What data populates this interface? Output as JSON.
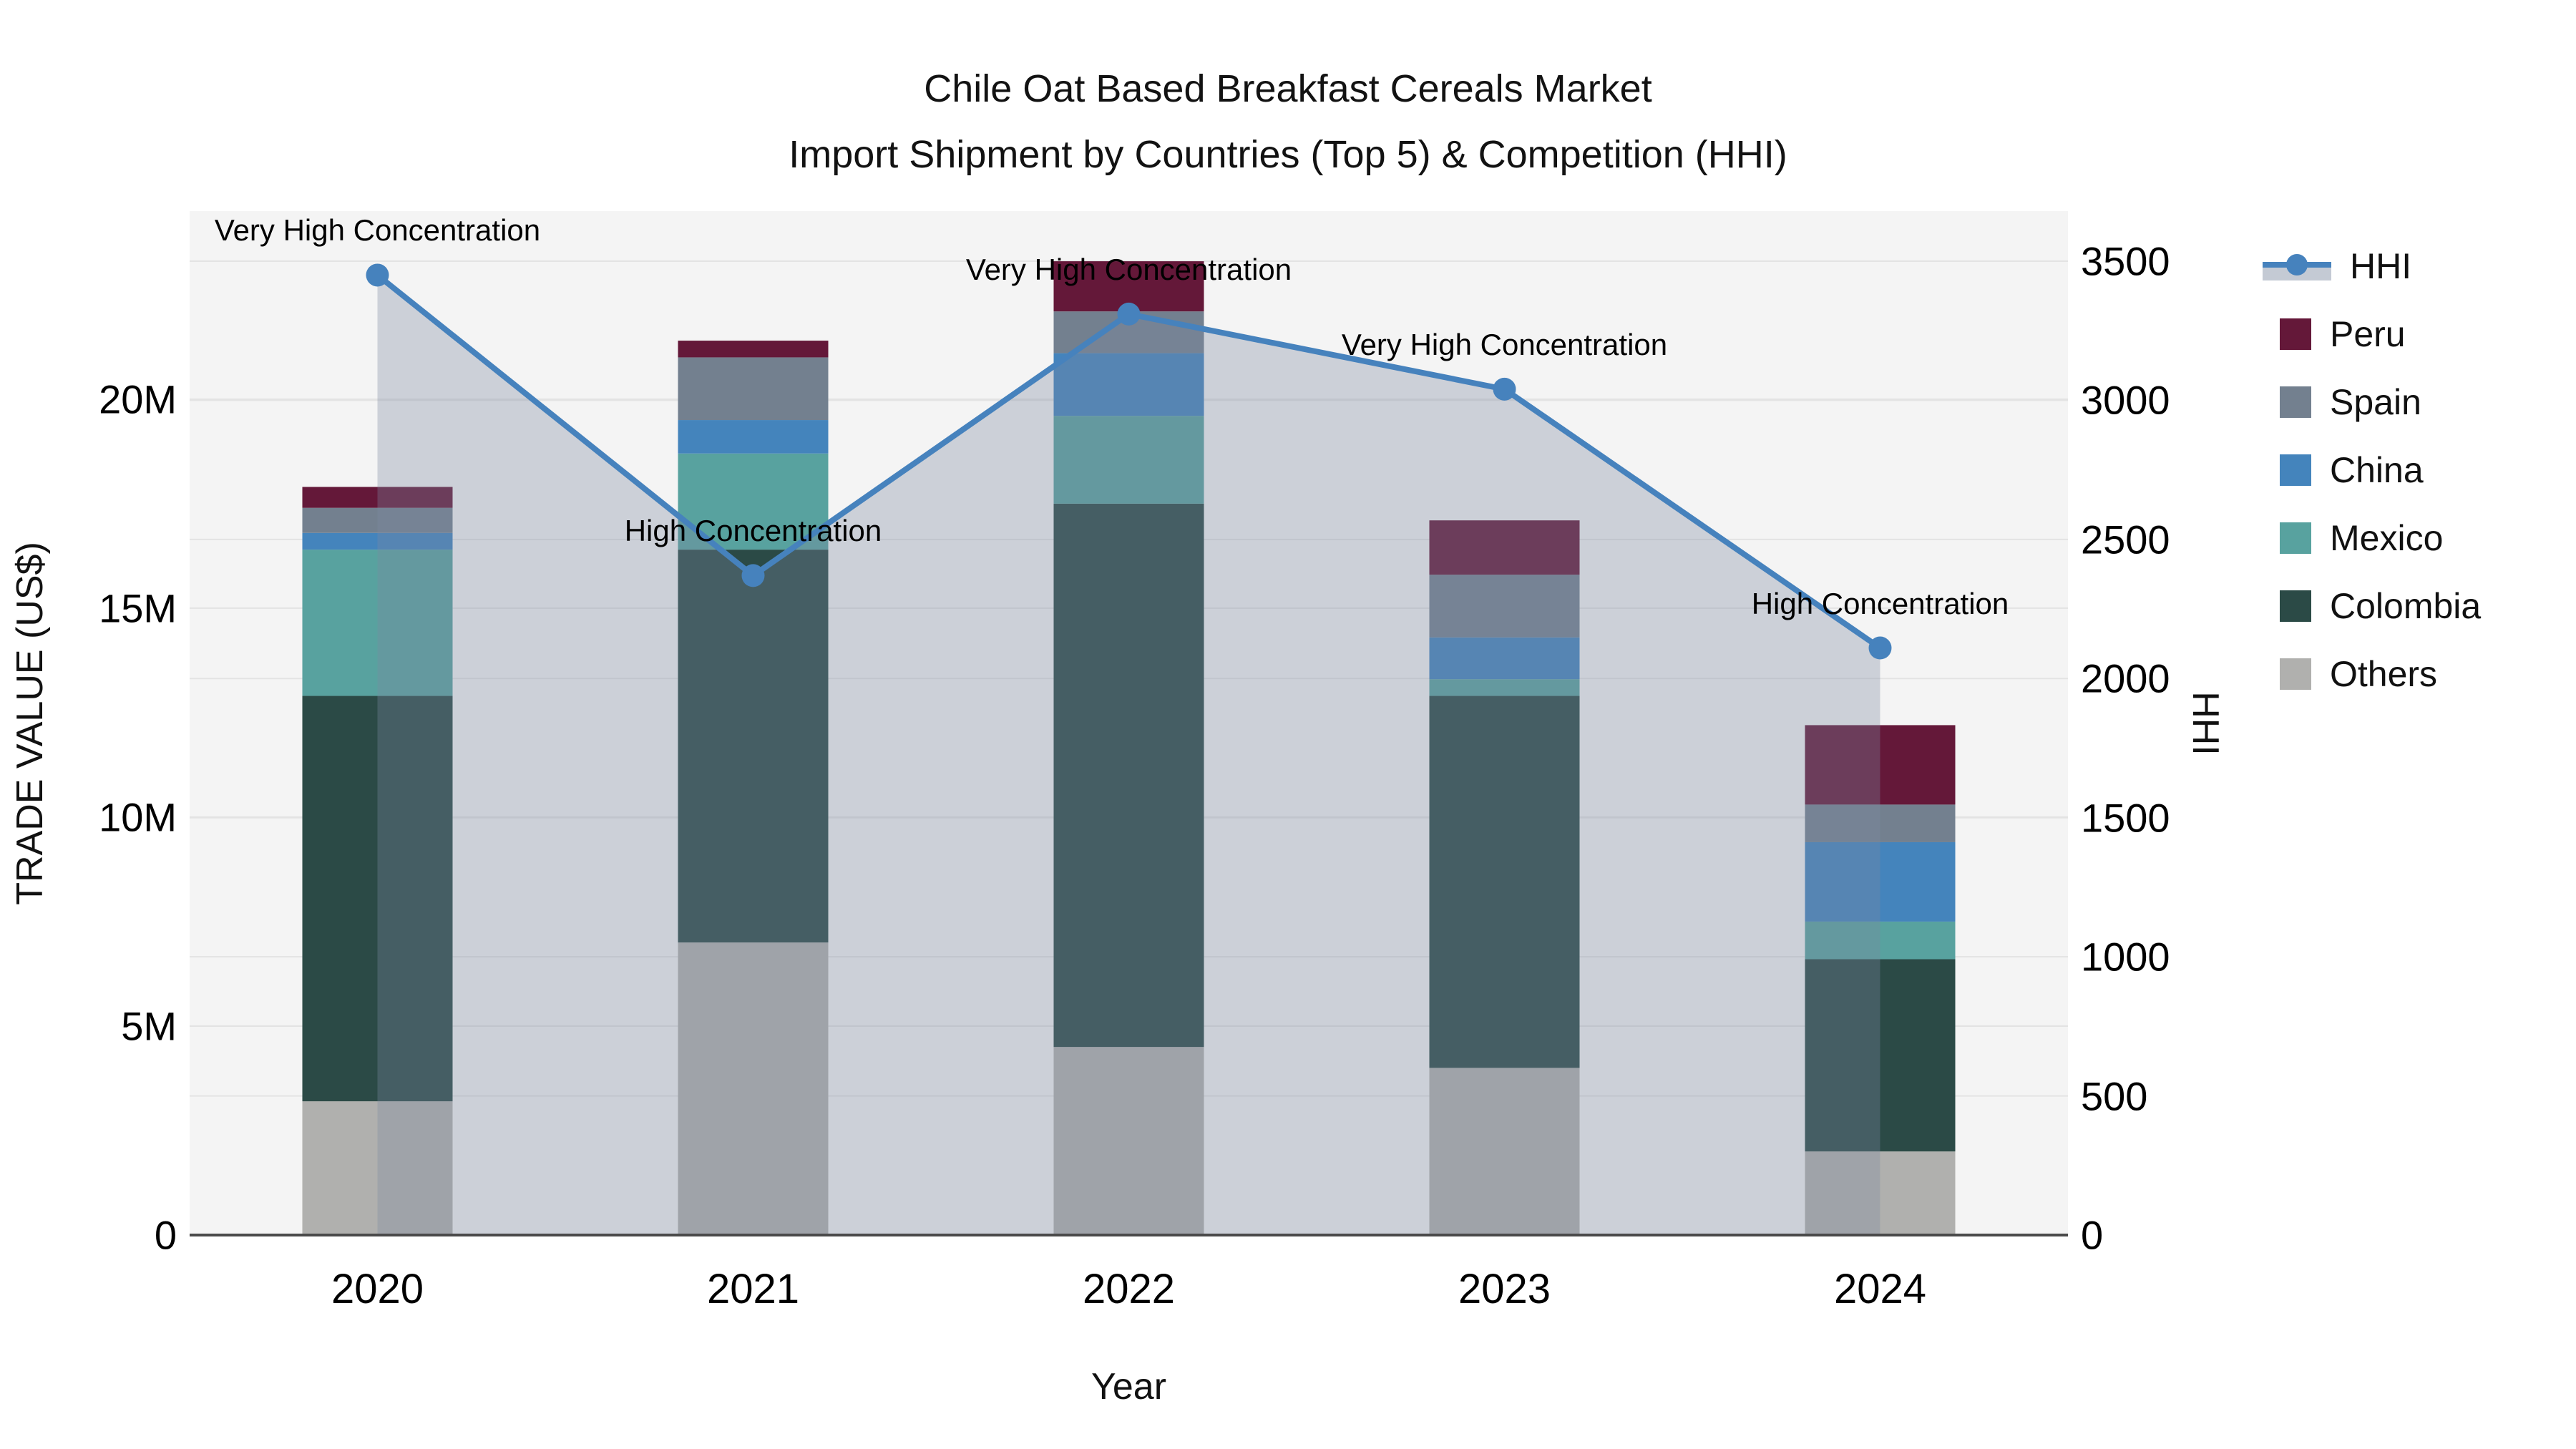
{
  "title": {
    "line1": "Chile Oat Based Breakfast Cereals Market",
    "line2": "Import Shipment by Countries (Top 5) & Competition (HHI)"
  },
  "colors": {
    "plot_background": "#f4f4f4",
    "gridline": "#e3e3e3",
    "axis_line": "#4a4a4a",
    "hhi_line": "#4682bd",
    "hhi_area_fill": "rgba(125,138,160,0.33)",
    "peru": "#641839",
    "spain": "#73808f",
    "china": "#4484bc",
    "mexico": "#58a29f",
    "colombia": "#2b4a46",
    "others": "#b0b0ae"
  },
  "legend": {
    "items": [
      {
        "label": "HHI",
        "type": "line",
        "color": "#4682bd"
      },
      {
        "label": "Peru",
        "type": "box",
        "color": "#641839"
      },
      {
        "label": "Spain",
        "type": "box",
        "color": "#73808f"
      },
      {
        "label": "China",
        "type": "box",
        "color": "#4484bc"
      },
      {
        "label": "Mexico",
        "type": "box",
        "color": "#58a29f"
      },
      {
        "label": "Colombia",
        "type": "box",
        "color": "#2b4a46"
      },
      {
        "label": "Others",
        "type": "box",
        "color": "#b0b0ae"
      }
    ]
  },
  "chart_data": {
    "type": "bar",
    "subtype": "stacked-bars-with-line",
    "categories": [
      "2020",
      "2021",
      "2022",
      "2023",
      "2024"
    ],
    "x_label": "Year",
    "y_left": {
      "label": "TRADE VALUE (US$)",
      "tick_values_musd": [
        0,
        5,
        10,
        15,
        20
      ],
      "tick_labels": [
        "0",
        "5M",
        "10M",
        "15M",
        "20M"
      ],
      "axis_top_musd": 24.5
    },
    "y_right": {
      "label": "HHI",
      "tick_values": [
        0,
        500,
        1000,
        1500,
        2000,
        2500,
        3000,
        3500
      ],
      "tick_labels": [
        "0",
        "500",
        "1000",
        "1500",
        "2000",
        "2500",
        "3000",
        "3500"
      ],
      "axis_top": 3680
    },
    "series": [
      {
        "name": "Others",
        "color": "#b0b0ae",
        "values_musd": [
          3.2,
          7.0,
          4.5,
          4.0,
          2.0
        ]
      },
      {
        "name": "Colombia",
        "color": "#2b4a46",
        "values_musd": [
          9.7,
          9.4,
          13.0,
          8.9,
          4.6
        ]
      },
      {
        "name": "Mexico",
        "color": "#58a29f",
        "values_musd": [
          3.5,
          2.3,
          2.1,
          0.4,
          0.9
        ]
      },
      {
        "name": "China",
        "color": "#4484bc",
        "values_musd": [
          0.4,
          0.8,
          1.5,
          1.0,
          1.9
        ]
      },
      {
        "name": "Spain",
        "color": "#73808f",
        "values_musd": [
          0.6,
          1.5,
          1.0,
          1.5,
          0.9
        ]
      },
      {
        "name": "Peru",
        "color": "#641839",
        "values_musd": [
          0.5,
          0.4,
          1.2,
          1.3,
          1.9
        ]
      }
    ],
    "bar_totals_musd": [
      17.9,
      21.4,
      23.3,
      17.1,
      12.2
    ],
    "line_series": {
      "name": "HHI",
      "color": "#4682bd",
      "values": [
        3450,
        2370,
        3310,
        3040,
        2110
      ],
      "area_fill": "rgba(125,138,160,0.33)"
    },
    "point_annotations": [
      "Very High Concentration",
      "High Concentration",
      "Very High Concentration",
      "Very High Concentration",
      "High Concentration"
    ],
    "legend_position": "right",
    "grid": true
  }
}
